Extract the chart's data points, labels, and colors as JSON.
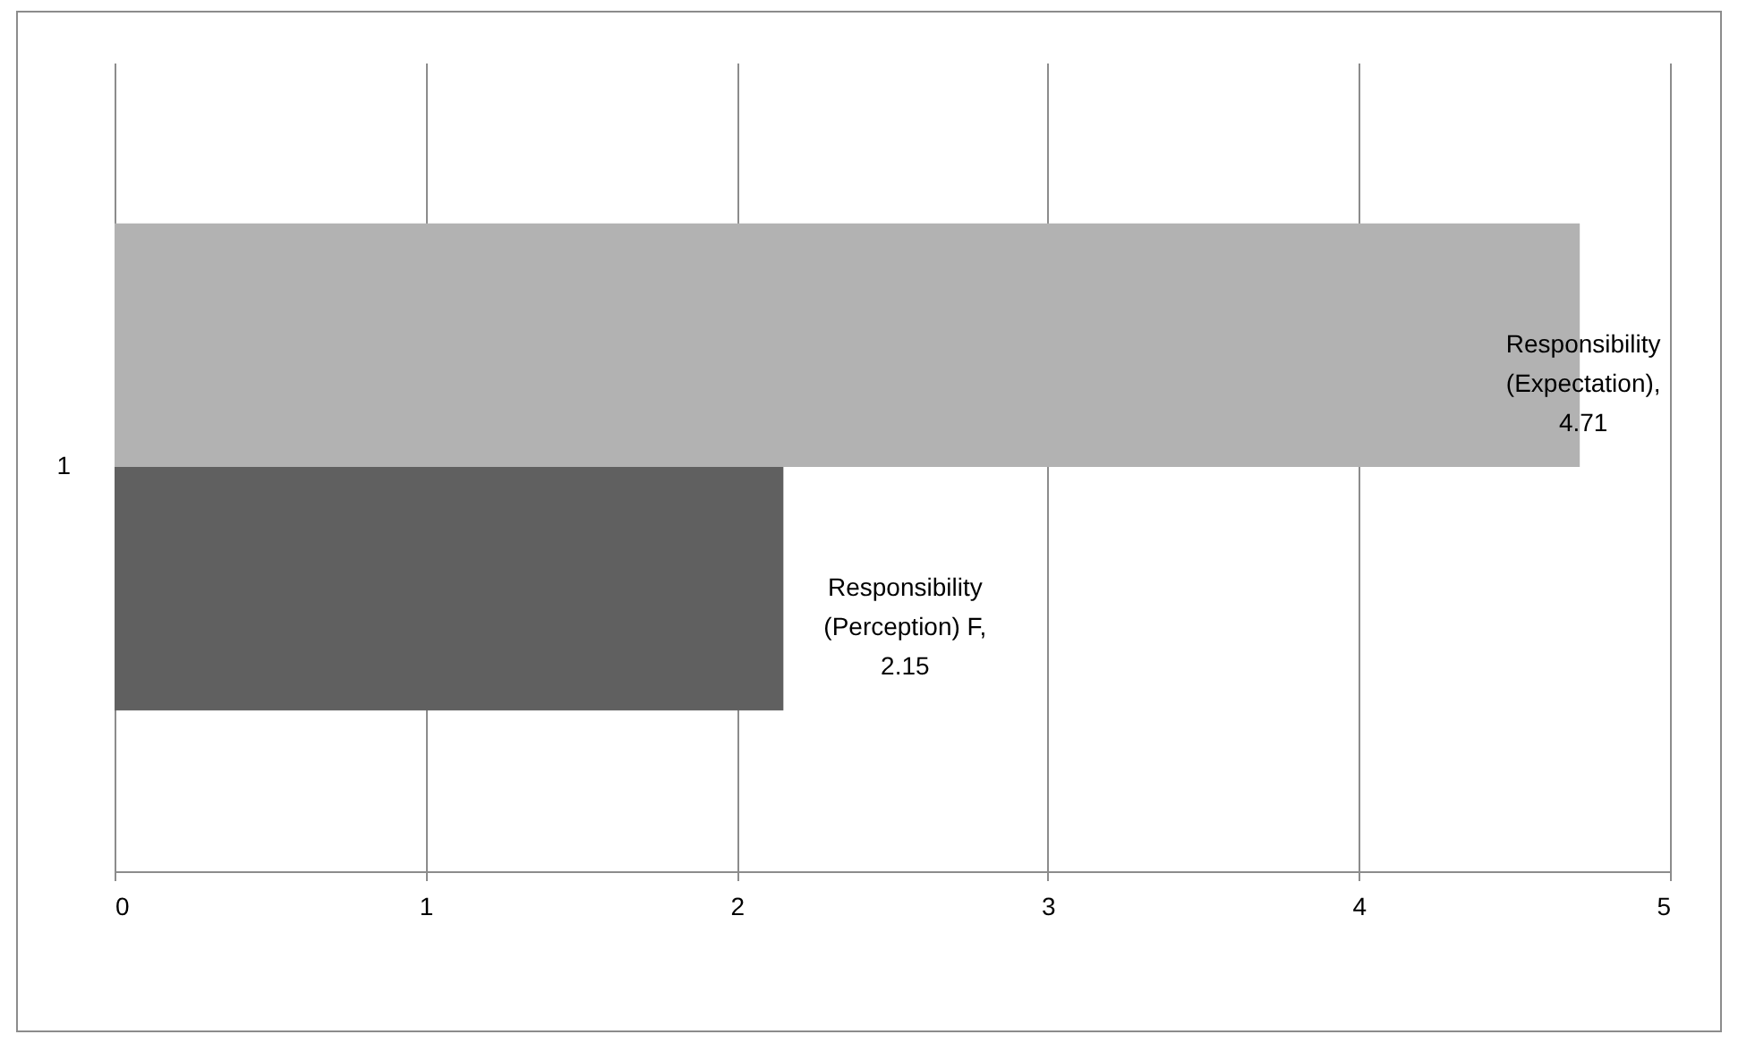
{
  "chart_data": {
    "type": "bar",
    "orientation": "horizontal",
    "categories": [
      "1"
    ],
    "series": [
      {
        "color": "#b2b2b2",
        "values": [
          4.71
        ],
        "value_labels": [
          "Responsibility (Expectation), 4.71"
        ]
      },
      {
        "color": "#606060",
        "values": [
          2.15
        ],
        "value_labels": [
          "Responsibility (Perception) F, 2.15"
        ]
      }
    ],
    "xlim": [
      0,
      5
    ],
    "xticks": [
      0,
      1,
      2,
      3,
      4,
      5
    ],
    "grid": "x",
    "legend": false
  }
}
